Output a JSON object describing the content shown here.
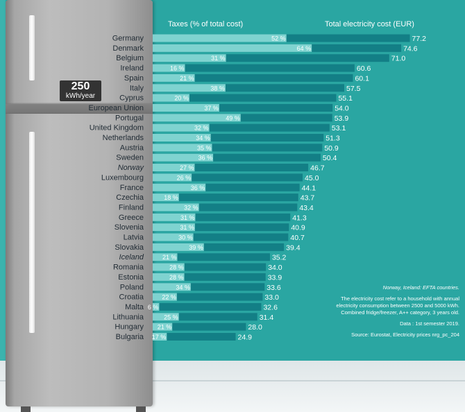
{
  "header": {
    "taxes_label": "Taxes (% of total cost)",
    "cost_label": "Total electricity cost (EUR)"
  },
  "badge": {
    "value": "250",
    "unit": "kWh/year"
  },
  "notes": {
    "efta": "Norway, Iceland: EFTA countries.",
    "definition": "The electricity cost refer to a household with annual electricity consumption between 2500 and 5000 kWh. Combined fridge/freezer, A++ category, 3 years old.",
    "date": "Data : 1st semester 2019.",
    "source": "Source: Eurostat, Electricity prices nrg_pc_204"
  },
  "colors": {
    "background": "#2aa6a2",
    "cost_bar": "#137f86",
    "tax_bar": "#7fd3d0",
    "label_text": "#1f2a33"
  },
  "chart_data": {
    "type": "bar",
    "orientation": "horizontal",
    "categories": [
      "Germany",
      "Denmark",
      "Belgium",
      "Ireland",
      "Spain",
      "Italy",
      "Cyprus",
      "European Union",
      "Portugal",
      "United Kingdom",
      "Netherlands",
      "Austria",
      "Sweden",
      "Norway",
      "Luxembourg",
      "France",
      "Czechia",
      "Finland",
      "Greece",
      "Slovenia",
      "Latvia",
      "Slovakia",
      "Iceland",
      "Romania",
      "Estonia",
      "Poland",
      "Croatia",
      "Malta",
      "Lithuania",
      "Hungary",
      "Bulgaria"
    ],
    "italic_categories": [
      "Norway",
      "Iceland"
    ],
    "highlight_category": "European Union",
    "series": [
      {
        "name": "Total electricity cost (EUR)",
        "values": [
          77.2,
          74.6,
          71.0,
          60.6,
          60.1,
          57.5,
          55.1,
          54.0,
          53.9,
          53.1,
          51.3,
          50.9,
          50.4,
          46.7,
          45.0,
          44.1,
          43.7,
          43.4,
          41.3,
          40.9,
          40.7,
          39.4,
          35.2,
          34.0,
          33.9,
          33.6,
          33.0,
          32.6,
          31.4,
          28.0,
          24.9
        ]
      },
      {
        "name": "Taxes (% of total cost)",
        "values": [
          52,
          64,
          31,
          16,
          21,
          38,
          20,
          37,
          49,
          32,
          34,
          35,
          36,
          27,
          26,
          36,
          18,
          32,
          31,
          31,
          30,
          39,
          21,
          28,
          28,
          34,
          22,
          6,
          25,
          21,
          17
        ]
      }
    ],
    "cost_labels": [
      "77.2",
      "74.6",
      "71.0",
      "60.6",
      "60.1",
      "57.5",
      "55.1",
      "54.0",
      "53.9",
      "53.1",
      "51.3",
      "50.9",
      "50.4",
      "46.7",
      "45.0",
      "44.1",
      "43.7",
      "43.4",
      "41.3",
      "40.9",
      "40.7",
      "39.4",
      "35.2",
      "34.0",
      "33.9",
      "33.6",
      "33.0",
      "32.6",
      "31.4",
      "28.0",
      "24.9"
    ],
    "tax_labels": [
      "52 %",
      "64 %",
      "31 %",
      "16 %",
      "21 %",
      "38 %",
      "20 %",
      "37 %",
      "49 %",
      "32 %",
      "34 %",
      "35 %",
      "36 %",
      "27 %",
      "26 %",
      "36 %",
      "18 %",
      "32 %",
      "31 %",
      "31 %",
      "30 %",
      "39 %",
      "21 %",
      "28 %",
      "28 %",
      "34 %",
      "22 %",
      "6 %",
      "25 %",
      "21 %",
      "17 %"
    ],
    "xlim": [
      0,
      80
    ]
  }
}
